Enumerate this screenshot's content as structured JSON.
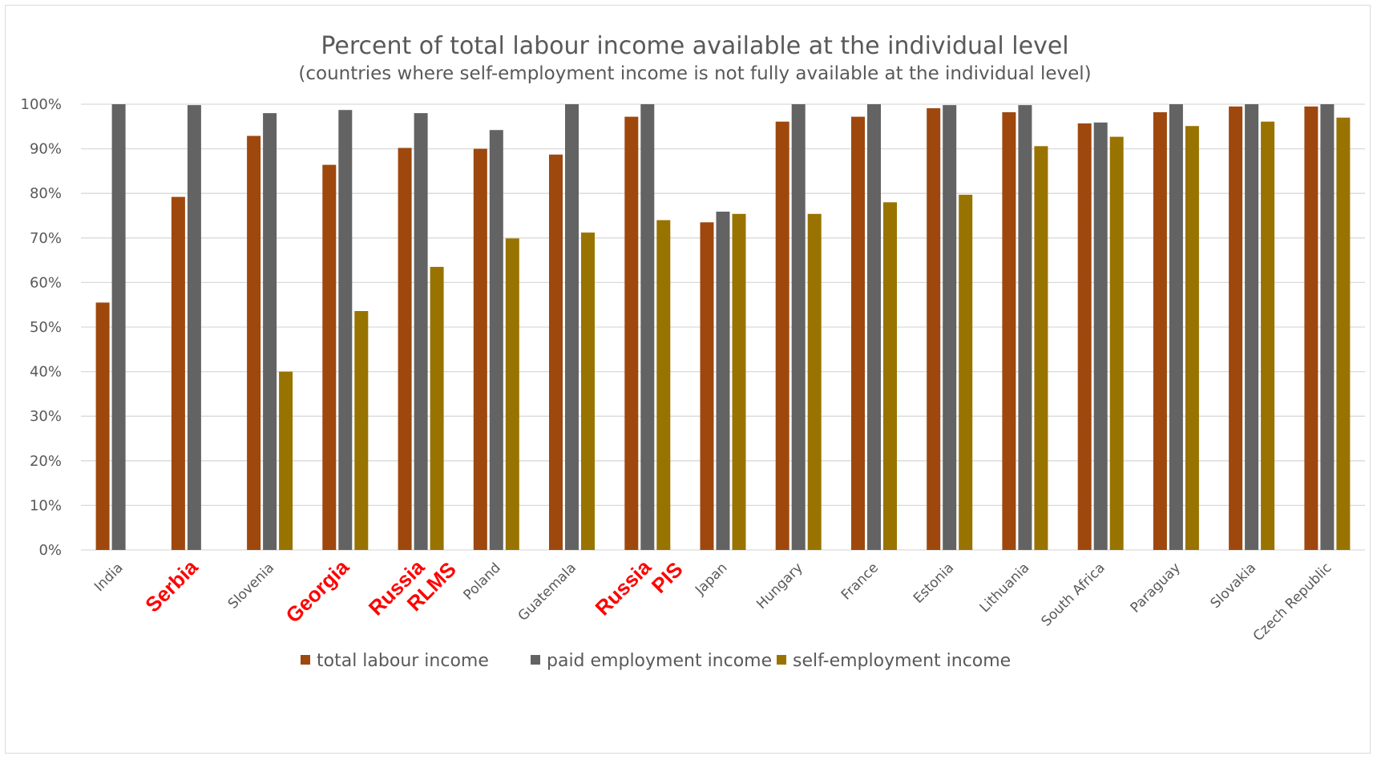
{
  "chart_data": {
    "type": "bar",
    "title": "Percent of total labour income available at the individual level",
    "subtitle": "(countries where self-employment income is not fully available at the individual level)",
    "xlabel": "",
    "ylabel": "",
    "ylim": [
      0,
      100
    ],
    "y_ticks": [
      "0%",
      "10%",
      "20%",
      "30%",
      "40%",
      "50%",
      "60%",
      "70%",
      "80%",
      "90%",
      "100%"
    ],
    "grid": true,
    "legend_position": "bottom",
    "categories": [
      {
        "label": "India",
        "highlight": false
      },
      {
        "label": "Serbia",
        "highlight": true
      },
      {
        "label": "Slovenia",
        "highlight": false
      },
      {
        "label": "Georgia",
        "highlight": true
      },
      {
        "label": "Russia\nRLMS",
        "highlight": true
      },
      {
        "label": "Poland",
        "highlight": false
      },
      {
        "label": "Guatemala",
        "highlight": false
      },
      {
        "label": "Russia\nPIS",
        "highlight": true
      },
      {
        "label": "Japan",
        "highlight": false
      },
      {
        "label": "Hungary",
        "highlight": false
      },
      {
        "label": "France",
        "highlight": false
      },
      {
        "label": "Estonia",
        "highlight": false
      },
      {
        "label": "Lithuania",
        "highlight": false
      },
      {
        "label": "South Africa",
        "highlight": false
      },
      {
        "label": "Paraguay",
        "highlight": false
      },
      {
        "label": "Slovakia",
        "highlight": false
      },
      {
        "label": "Czech Republic",
        "highlight": false
      }
    ],
    "series": [
      {
        "name": "total labour income",
        "color": "#9e480e",
        "values": [
          55.5,
          79.2,
          92.9,
          86.4,
          90.2,
          90.0,
          88.7,
          97.2,
          73.5,
          96.1,
          97.2,
          99.1,
          98.2,
          95.7,
          98.2,
          99.5,
          99.5
        ]
      },
      {
        "name": "paid employment income",
        "color": "#636363",
        "values": [
          100.0,
          99.8,
          98.0,
          98.7,
          98.0,
          94.2,
          100.0,
          100.0,
          75.9,
          100.0,
          100.0,
          99.8,
          99.8,
          95.9,
          100.0,
          100.0,
          100.0
        ]
      },
      {
        "name": "self-employment income",
        "color": "#997300",
        "values": [
          null,
          null,
          40.0,
          53.6,
          63.5,
          69.9,
          71.2,
          74.0,
          75.4,
          75.4,
          78.0,
          79.7,
          90.6,
          92.7,
          95.1,
          96.1,
          97.0
        ]
      }
    ]
  }
}
